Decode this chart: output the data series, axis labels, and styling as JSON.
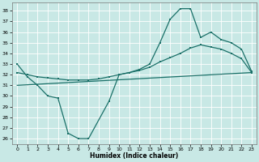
{
  "bg_color": "#c8e8e5",
  "grid_color": "#ffffff",
  "line_color": "#1a7068",
  "xlabel": "Humidex (Indice chaleur)",
  "xlim": [
    -0.5,
    23.5
  ],
  "ylim": [
    25.5,
    38.8
  ],
  "yticks": [
    26,
    27,
    28,
    29,
    30,
    31,
    32,
    33,
    34,
    35,
    36,
    37,
    38
  ],
  "xticks": [
    0,
    1,
    2,
    3,
    4,
    5,
    6,
    7,
    8,
    9,
    10,
    11,
    12,
    13,
    14,
    15,
    16,
    17,
    18,
    19,
    20,
    21,
    22,
    23
  ],
  "curve1_x": [
    0,
    1,
    2,
    3,
    4,
    5,
    6,
    7,
    9,
    10,
    11,
    12,
    13,
    14,
    15,
    16,
    17,
    18,
    19,
    20,
    21,
    22,
    23
  ],
  "curve1_y": [
    33.0,
    31.8,
    31.0,
    30.0,
    29.8,
    26.5,
    26.0,
    26.0,
    29.5,
    32.0,
    32.2,
    32.5,
    33.0,
    35.0,
    37.2,
    38.2,
    38.2,
    35.5,
    36.0,
    35.3,
    35.0,
    34.4,
    32.3
  ],
  "curve2_x": [
    0,
    1,
    2,
    3,
    4,
    5,
    6,
    7,
    8,
    9,
    10,
    11,
    12,
    13,
    14,
    15,
    16,
    17,
    18,
    19,
    20,
    21,
    22,
    23
  ],
  "curve2_y": [
    32.2,
    32.0,
    31.8,
    31.7,
    31.6,
    31.5,
    31.5,
    31.5,
    31.6,
    31.8,
    32.0,
    32.2,
    32.4,
    32.7,
    33.2,
    33.6,
    34.0,
    34.5,
    34.8,
    34.6,
    34.4,
    34.0,
    33.5,
    32.2
  ],
  "curve3_x": [
    0,
    23
  ],
  "curve3_y": [
    31.0,
    32.2
  ]
}
